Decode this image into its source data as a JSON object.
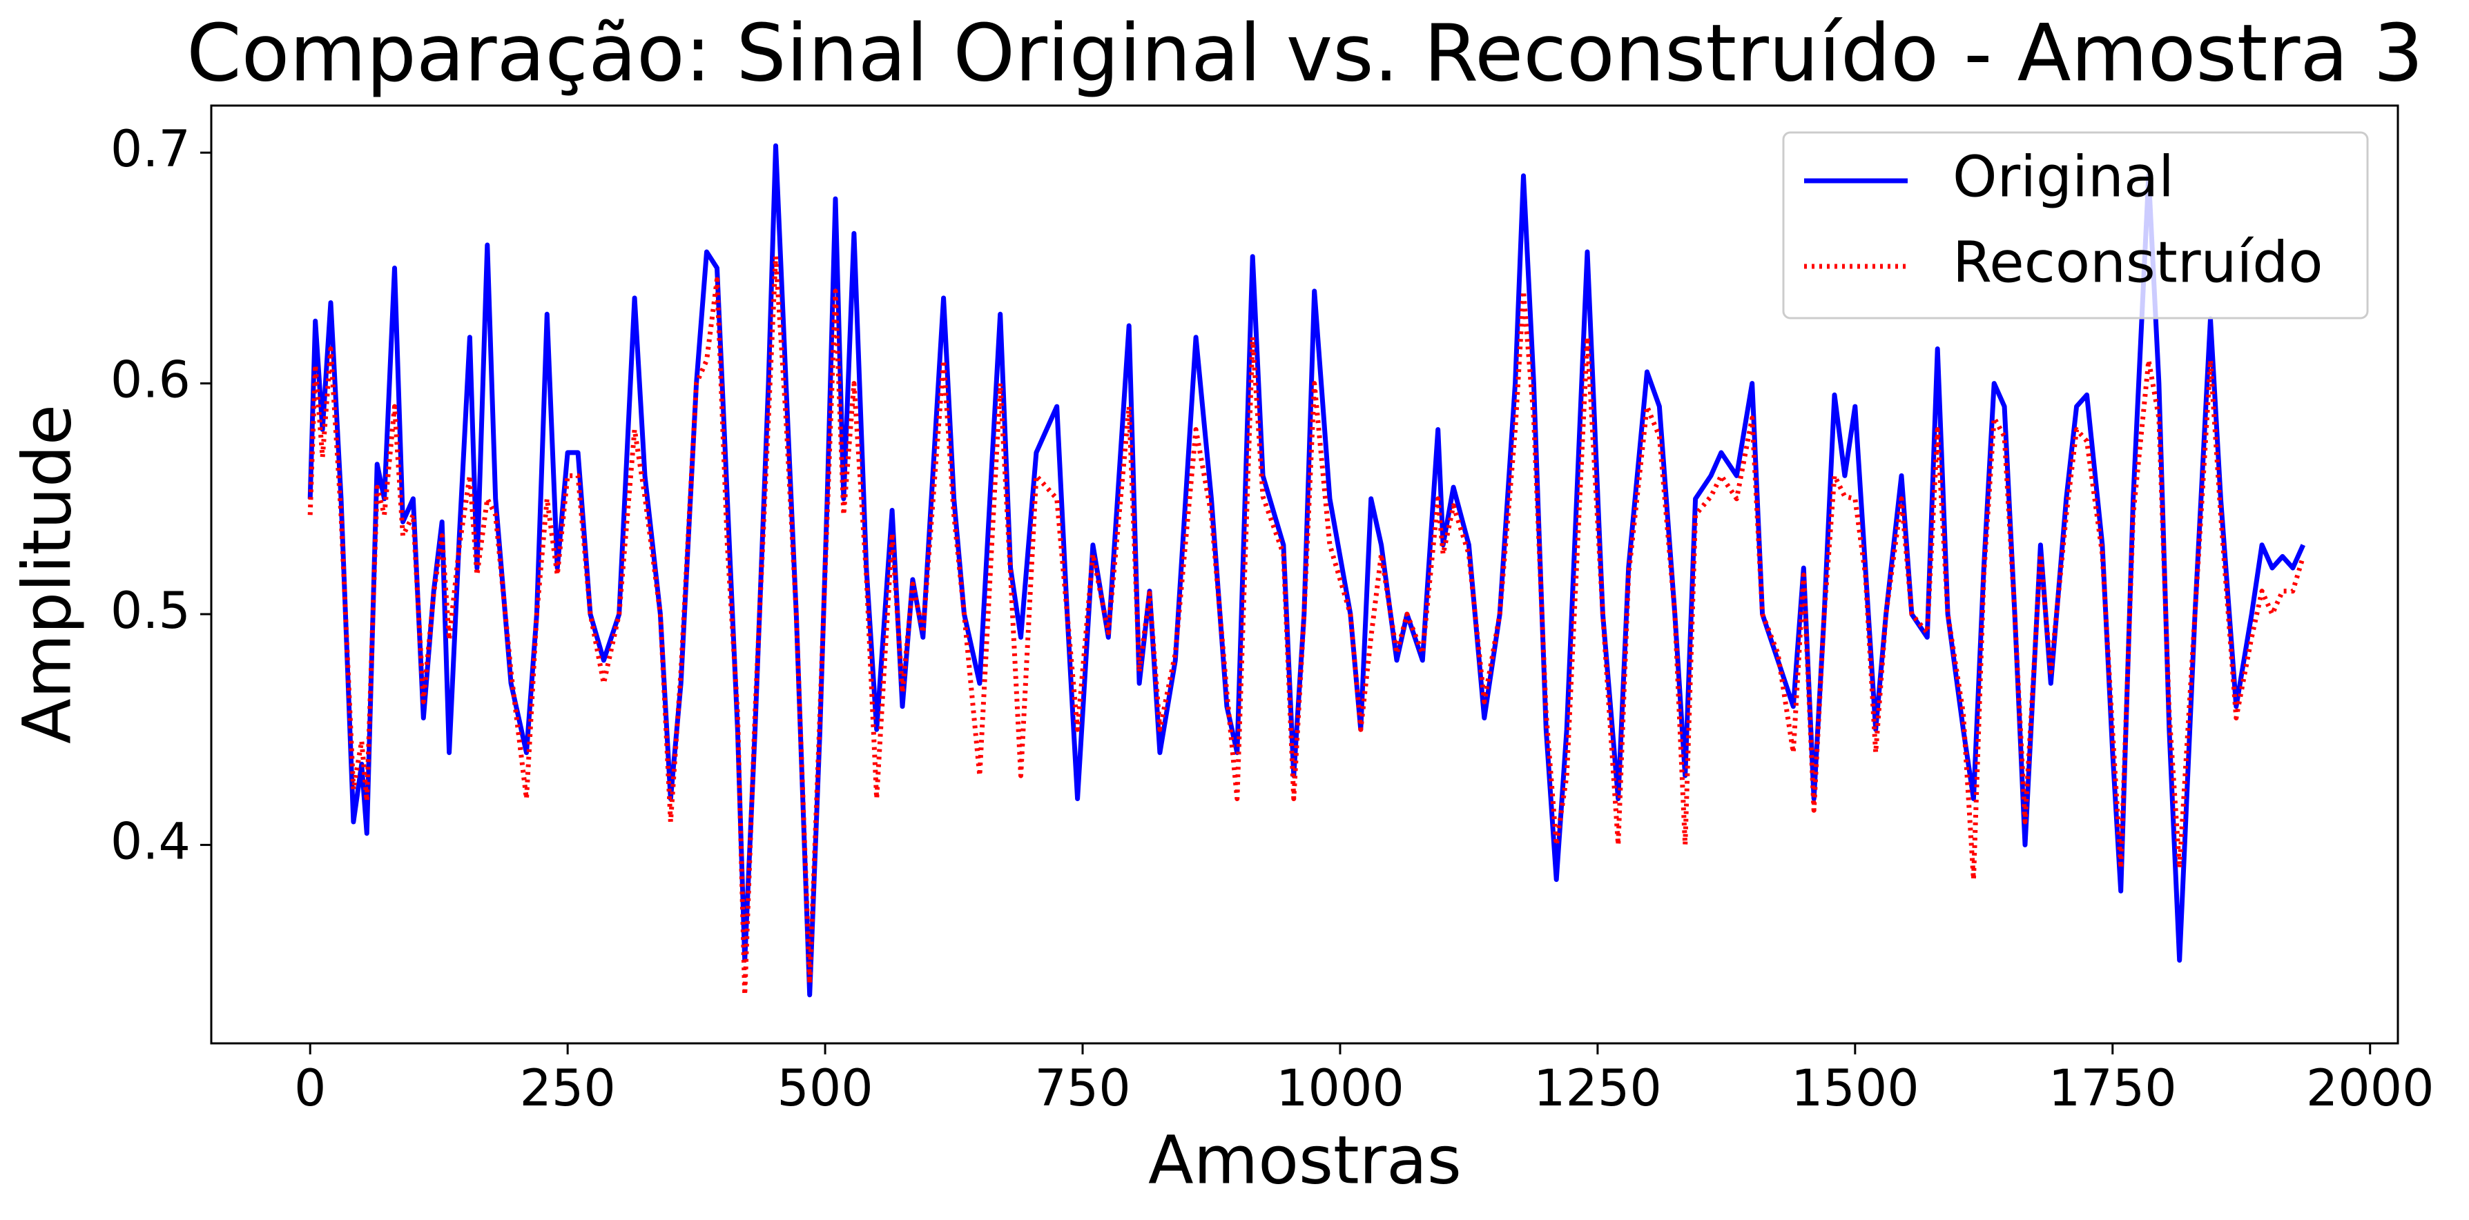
{
  "chart_data": {
    "type": "line",
    "title": "Comparação: Sinal Original vs. Reconstruído - Amostra 3",
    "xlabel": "Amostras",
    "ylabel": "Amplitude",
    "x": [
      0,
      5,
      12,
      20,
      30,
      42,
      50,
      55,
      65,
      72,
      82,
      90,
      100,
      110,
      120,
      128,
      135,
      145,
      155,
      162,
      172,
      180,
      195,
      210,
      220,
      230,
      240,
      250,
      260,
      272,
      285,
      300,
      315,
      325,
      340,
      350,
      360,
      375,
      385,
      395,
      405,
      415,
      422,
      432,
      445,
      452,
      462,
      472,
      485,
      495,
      502,
      510,
      518,
      528,
      540,
      550,
      565,
      575,
      585,
      595,
      615,
      625,
      635,
      650,
      670,
      680,
      690,
      705,
      725,
      735,
      745,
      760,
      775,
      795,
      805,
      815,
      825,
      840,
      860,
      875,
      890,
      900,
      915,
      925,
      945,
      955,
      965,
      975,
      990,
      1010,
      1020,
      1030,
      1040,
      1055,
      1065,
      1080,
      1095,
      1100,
      1110,
      1125,
      1140,
      1155,
      1170,
      1178,
      1188,
      1200,
      1210,
      1220,
      1240,
      1255,
      1270,
      1280,
      1298,
      1310,
      1325,
      1335,
      1345,
      1360,
      1370,
      1385,
      1400,
      1410,
      1425,
      1440,
      1450,
      1460,
      1470,
      1480,
      1490,
      1500,
      1510,
      1520,
      1530,
      1545,
      1555,
      1570,
      1580,
      1590,
      1605,
      1615,
      1625,
      1635,
      1645,
      1655,
      1665,
      1680,
      1690,
      1705,
      1715,
      1725,
      1740,
      1750,
      1758,
      1770,
      1785,
      1795,
      1805,
      1815,
      1830,
      1845,
      1855,
      1870,
      1885,
      1895,
      1905,
      1915,
      1925,
      1935
    ],
    "series": [
      {
        "name": "Original",
        "color": "#0000ff",
        "linestyle": "solid",
        "values": [
          0.55,
          0.627,
          0.58,
          0.635,
          0.55,
          0.41,
          0.435,
          0.405,
          0.565,
          0.55,
          0.65,
          0.54,
          0.55,
          0.455,
          0.51,
          0.54,
          0.44,
          0.535,
          0.62,
          0.52,
          0.66,
          0.55,
          0.47,
          0.44,
          0.5,
          0.63,
          0.52,
          0.57,
          0.57,
          0.5,
          0.48,
          0.5,
          0.637,
          0.56,
          0.5,
          0.42,
          0.47,
          0.6,
          0.657,
          0.65,
          0.55,
          0.45,
          0.35,
          0.45,
          0.6,
          0.703,
          0.6,
          0.5,
          0.335,
          0.45,
          0.55,
          0.68,
          0.55,
          0.665,
          0.52,
          0.45,
          0.545,
          0.46,
          0.515,
          0.49,
          0.637,
          0.55,
          0.5,
          0.47,
          0.63,
          0.52,
          0.49,
          0.57,
          0.59,
          0.5,
          0.42,
          0.53,
          0.49,
          0.625,
          0.47,
          0.51,
          0.44,
          0.48,
          0.62,
          0.55,
          0.46,
          0.44,
          0.655,
          0.56,
          0.53,
          0.43,
          0.5,
          0.64,
          0.55,
          0.5,
          0.45,
          0.55,
          0.53,
          0.48,
          0.5,
          0.48,
          0.58,
          0.53,
          0.555,
          0.53,
          0.455,
          0.5,
          0.6,
          0.69,
          0.6,
          0.45,
          0.385,
          0.45,
          0.657,
          0.5,
          0.42,
          0.52,
          0.605,
          0.59,
          0.5,
          0.43,
          0.55,
          0.56,
          0.57,
          0.56,
          0.6,
          0.5,
          0.48,
          0.46,
          0.52,
          0.42,
          0.5,
          0.595,
          0.56,
          0.59,
          0.52,
          0.45,
          0.5,
          0.56,
          0.5,
          0.49,
          0.615,
          0.5,
          0.45,
          0.42,
          0.52,
          0.6,
          0.59,
          0.5,
          0.4,
          0.53,
          0.47,
          0.55,
          0.59,
          0.595,
          0.53,
          0.44,
          0.38,
          0.55,
          0.69,
          0.6,
          0.45,
          0.35,
          0.5,
          0.628,
          0.55,
          0.46,
          0.5,
          0.53,
          0.52,
          0.525,
          0.52,
          0.53
        ]
      },
      {
        "name": "Reconstruído",
        "color": "#ff0000",
        "linestyle": "dotted",
        "values": [
          0.543,
          0.608,
          0.568,
          0.615,
          0.543,
          0.424,
          0.445,
          0.419,
          0.555,
          0.543,
          0.59,
          0.534,
          0.543,
          0.462,
          0.509,
          0.534,
          0.489,
          0.53,
          0.56,
          0.517,
          0.55,
          0.543,
          0.475,
          0.42,
          0.5,
          0.55,
          0.517,
          0.56,
          0.56,
          0.5,
          0.47,
          0.5,
          0.58,
          0.551,
          0.5,
          0.41,
          0.475,
          0.6,
          0.61,
          0.645,
          0.53,
          0.457,
          0.335,
          0.457,
          0.585,
          0.655,
          0.585,
          0.5,
          0.34,
          0.457,
          0.543,
          0.64,
          0.543,
          0.6,
          0.517,
          0.42,
          0.535,
          0.466,
          0.513,
          0.492,
          0.61,
          0.543,
          0.5,
          0.43,
          0.6,
          0.517,
          0.43,
          0.56,
          0.55,
          0.5,
          0.45,
          0.526,
          0.492,
          0.59,
          0.475,
          0.509,
          0.45,
          0.483,
          0.58,
          0.543,
          0.466,
          0.42,
          0.62,
          0.551,
          0.526,
          0.42,
          0.5,
          0.6,
          0.53,
          0.5,
          0.45,
          0.49,
          0.526,
          0.483,
          0.5,
          0.483,
          0.55,
          0.526,
          0.547,
          0.526,
          0.462,
          0.5,
          0.58,
          0.64,
          0.585,
          0.457,
          0.4,
          0.43,
          0.62,
          0.5,
          0.4,
          0.517,
          0.59,
          0.577,
          0.5,
          0.4,
          0.543,
          0.551,
          0.56,
          0.55,
          0.585,
          0.5,
          0.483,
          0.44,
          0.517,
          0.415,
          0.5,
          0.56,
          0.551,
          0.55,
          0.517,
          0.44,
          0.5,
          0.55,
          0.5,
          0.492,
          0.58,
          0.5,
          0.457,
          0.385,
          0.517,
          0.585,
          0.577,
          0.5,
          0.41,
          0.526,
          0.475,
          0.543,
          0.58,
          0.575,
          0.526,
          0.449,
          0.39,
          0.543,
          0.61,
          0.585,
          0.457,
          0.39,
          0.5,
          0.61,
          0.543,
          0.455,
          0.49,
          0.51,
          0.5,
          0.51,
          0.51,
          0.525
        ]
      }
    ],
    "xlim": [
      -96,
      2027
    ],
    "ylim": [
      0.314,
      0.7204
    ],
    "xticks": [
      0,
      250,
      500,
      750,
      1000,
      1250,
      1500,
      1750,
      2000
    ],
    "yticks": [
      0.4,
      0.5,
      0.6,
      0.7
    ],
    "legend": "upper right",
    "grid": false
  }
}
